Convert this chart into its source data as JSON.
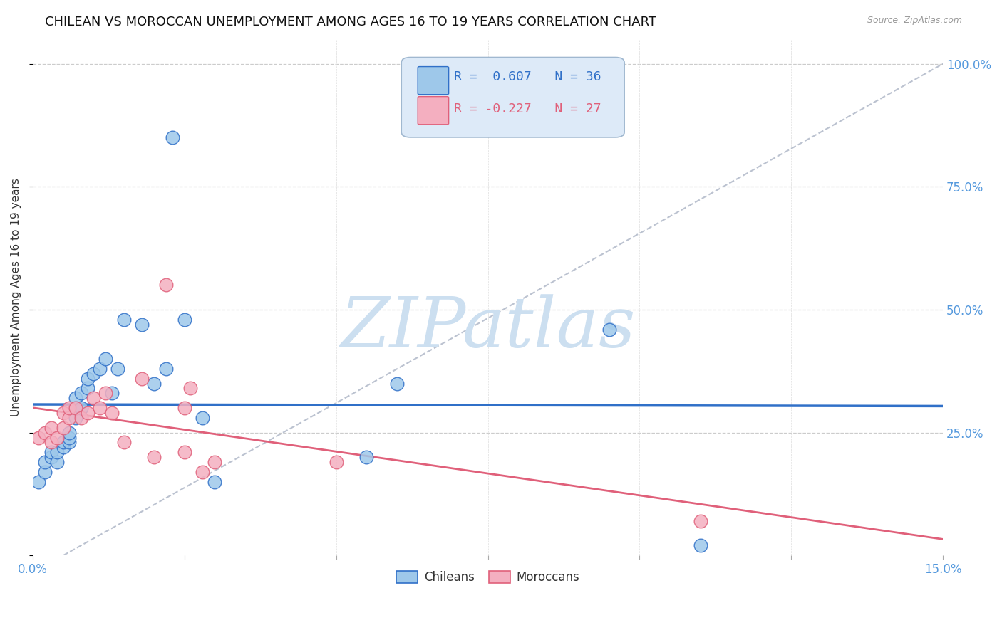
{
  "title": "CHILEAN VS MOROCCAN UNEMPLOYMENT AMONG AGES 16 TO 19 YEARS CORRELATION CHART",
  "source": "Source: ZipAtlas.com",
  "ylabel": "Unemployment Among Ages 16 to 19 years",
  "xlim": [
    0.0,
    0.15
  ],
  "ylim": [
    0.0,
    1.05
  ],
  "chilean_x": [
    0.001,
    0.002,
    0.002,
    0.003,
    0.003,
    0.004,
    0.004,
    0.005,
    0.005,
    0.006,
    0.006,
    0.006,
    0.007,
    0.007,
    0.007,
    0.008,
    0.008,
    0.009,
    0.009,
    0.01,
    0.011,
    0.012,
    0.013,
    0.014,
    0.015,
    0.018,
    0.02,
    0.022,
    0.023,
    0.025,
    0.028,
    0.03,
    0.055,
    0.06,
    0.095,
    0.11
  ],
  "chilean_y": [
    0.15,
    0.17,
    0.19,
    0.2,
    0.21,
    0.19,
    0.21,
    0.22,
    0.23,
    0.23,
    0.24,
    0.25,
    0.28,
    0.3,
    0.32,
    0.3,
    0.33,
    0.34,
    0.36,
    0.37,
    0.38,
    0.4,
    0.33,
    0.38,
    0.48,
    0.47,
    0.35,
    0.38,
    0.85,
    0.48,
    0.28,
    0.15,
    0.2,
    0.35,
    0.46,
    0.02
  ],
  "moroccan_x": [
    0.001,
    0.002,
    0.003,
    0.003,
    0.004,
    0.005,
    0.005,
    0.006,
    0.006,
    0.007,
    0.008,
    0.009,
    0.01,
    0.011,
    0.012,
    0.013,
    0.015,
    0.018,
    0.02,
    0.022,
    0.025,
    0.025,
    0.026,
    0.028,
    0.03,
    0.05,
    0.11
  ],
  "moroccan_y": [
    0.24,
    0.25,
    0.23,
    0.26,
    0.24,
    0.26,
    0.29,
    0.28,
    0.3,
    0.3,
    0.28,
    0.29,
    0.32,
    0.3,
    0.33,
    0.29,
    0.23,
    0.36,
    0.2,
    0.55,
    0.3,
    0.21,
    0.34,
    0.17,
    0.19,
    0.19,
    0.07
  ],
  "chilean_color": "#9ec8ea",
  "moroccan_color": "#f4afc0",
  "chilean_line_color": "#3070c8",
  "moroccan_line_color": "#e0607a",
  "ref_line_color": "#b0b8c8",
  "legend_box_facecolor": "#ddeaf8",
  "legend_box_edgecolor": "#a0b8d0",
  "r_chilean": "0.607",
  "n_chilean": "36",
  "r_moroccan": "-0.227",
  "n_moroccan": "27",
  "watermark": "ZIPatlas",
  "watermark_color": "#ccdff0",
  "title_fontsize": 13,
  "axis_label_fontsize": 11,
  "tick_fontsize": 12,
  "legend_fontsize": 13,
  "right_tick_color": "#5599dd",
  "bottom_tick_color": "#5599dd",
  "title_color": "#111111",
  "source_color": "#999999",
  "ylabel_color": "#333333"
}
